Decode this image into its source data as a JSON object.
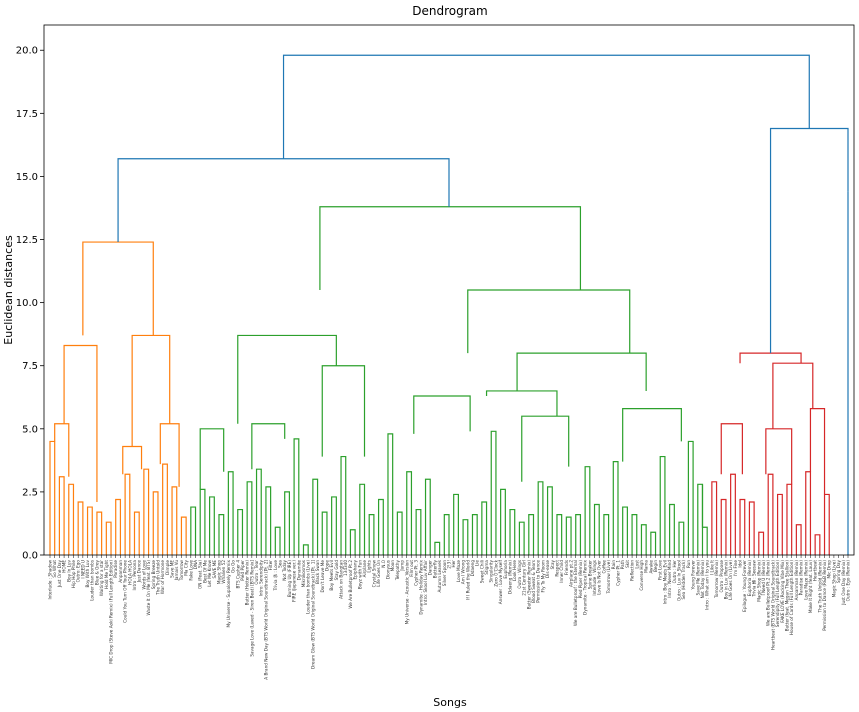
{
  "chart_data": {
    "type": "dendrogram",
    "title": "Dendrogram",
    "xlabel": "Songs",
    "ylabel": "Euclidean distances",
    "ylim": [
      0,
      21
    ],
    "yticks": [
      "0.0",
      "2.5",
      "5.0",
      "7.5",
      "10.0",
      "12.5",
      "15.0",
      "17.5",
      "20.0"
    ],
    "grid": false,
    "colors": {
      "orange": "#ff7f0e",
      "green": "#2ca02c",
      "red": "#d62728",
      "blue": "#1f77b4"
    },
    "cluster_leaf_counts": {
      "orange": 30,
      "green": 111,
      "red": 25,
      "blue": 1
    },
    "leaf_labels": [
      "Interlude : Shadow",
      "So What",
      "Just One Day",
      "HOME",
      "Boy In Luv",
      "Hip Hop Phile",
      "Outro: Ego",
      "I NEED U",
      "Boy With Luv",
      "Louder than bombs",
      "Blue & Grey",
      "Waiting for a star",
      "Hold Me Tight",
      "MIC Drop (Steve Aoki Remix) (Full Length Edition)",
      "Paradise",
      "Anpanman",
      "Could You Turn Off Your Phone",
      "HOLA HOLA",
      "Intro : Persona",
      "Just Dance",
      "Words of Love",
      "Waste It On Me (feat. BTS)",
      "Spring Breeze",
      "The Truth Untold",
      "War of Hormone",
      "Dimple",
      "Save ME",
      "Jamais Vu",
      "Tomorrow",
      "Ma City",
      "Fake Love",
      "DNA",
      "ON (Feat. Sia)",
      "Best Of Me",
      "Let Me Know",
      "SAVE ME",
      "Magic Shop",
      "Whalien 52",
      "My Universe - Supalonely Remix",
      "Go Go",
      "BTS Cypher 4",
      "Pied Piper",
      "Butter (Hotter Remix)",
      "Savage Love (Laxed - Siren Beat) [BTS Remix]",
      "Outro : Tear",
      "Intro: Serendipity",
      "A Brand New Day (BTS World Original Soundtrack) [Pt. 2]",
      "Filter",
      "Trivia 承 : Love",
      "Sea",
      "Not Today",
      "Burning Up (FIRE)",
      "FIRE (Japanese ver.)",
      "Dynamite",
      "Mikrokosmos",
      "Louder than bombs (Live)",
      "Dream Glow (BTS World Original Soundtrack) [Pt. 1]",
      "Black Swan",
      "Don't Leave Me",
      "Dope",
      "Boy Meets Evil",
      "Stay Gold",
      "Attack on Bangtan",
      "134340",
      "We Are Bulletproof Pt.2",
      "Epiphany",
      "Boyz with Fun",
      "Airplane",
      "Lights",
      "Crystal Snow",
      "Life Goes On",
      "N.O",
      "Dionysus",
      "Moon",
      "Telepathy",
      "Jump",
      "My Universe - Acoustic Version",
      "Film out",
      "Cypher Pt. 3",
      "Dynamite - Holiday Remix",
      "Intro: Skool Luv Affair",
      "Danger",
      "Butterfly",
      "Autumn Leaves",
      "Silver Spoon",
      "2!3!",
      "Her",
      "Love Maze",
      "Am I Wrong",
      "If I Ruled the World",
      "Ddaeng",
      "Lie",
      "Sweet Chili",
      "Stigma",
      "Singularity",
      "Zero O'Clock",
      "Answer : Love Myself",
      "Euphoria",
      "Ddaeng (Remix)",
      "Look Here",
      "Outro : Wings",
      "21st Century Girl",
      "Butter (Sweeter Remix)",
      "Blood Sweat & Tears",
      "Permission to Dance",
      "Fly To My Room",
      "Dis-ease",
      "Stay",
      "Respect",
      "Inner Child",
      "Friends",
      "Airplane pt.2",
      "We are Bulletproof : the Eternal",
      "Pied Piper (Remix)",
      "Dynamite - Tropical Remix",
      "Spine Breaker",
      "Interlude : Wings",
      "Love Is Not Over",
      "Coffee",
      "Tomorrow (Live)",
      "Rain",
      "Cypher Pt. 1",
      "Path",
      "Skit",
      "Reflection",
      "Lost",
      "Converse High",
      "Mama",
      "Awake",
      "Begin",
      "First Love",
      "Intro : Boy Meets Evil",
      "Intro : Never Mind",
      "Outro : Her",
      "Outro : Luv In Skool",
      "Sea (Hidden Track)",
      "Run",
      "Young Forever",
      "Save Me (Remix)",
      "Not Today (Remix)",
      "Intro : What am I to you",
      "I Like It",
      "Tomorrow (Remix)",
      "Outro : Propose",
      "Boy in Luv (Remix)",
      "Life Goes On (Live)",
      "I'm Fine",
      "Idol",
      "Epilogue : Young Forever",
      "Euphoria (Remix)",
      "Trivia 轉 : Seesaw",
      "Magic Shop (Remix)",
      "I Need U (Remix)",
      "We are Bulletproof Pt.2 (Remix)",
      "Heartbeat (BTS World Original Soundtrack)",
      "Serendipity (Full Length Edition)",
      "FAKE LOVE (Rocking Vibe Mix)",
      "Butter (feat. Megan Thee Stallion)",
      "House of Cards (Full Length Edition)",
      "Anpanman (Remix)",
      "Paradise (Remix)",
      "Love Maze (Remix)",
      "Make It Right (feat. Lauv)",
      "Heartbeat",
      "The Truth Untold (Remix)",
      "Permission to Dance (R&B Remix)",
      "Mic Drop",
      "Magic Shop (Live)",
      "Spring Day",
      "Just One Day (Remix)",
      "Outro : Ego (Remix)"
    ],
    "links": [
      {
        "c": "orange",
        "a": 0,
        "b": 1,
        "h": 4.5
      },
      {
        "c": "orange",
        "a": 2,
        "b": 3,
        "h": 3.1
      },
      {
        "c": "orange",
        "a": 4,
        "b": 5,
        "h": 2.8
      },
      {
        "c": "orange",
        "a": 6,
        "b": 7,
        "h": 2.1
      },
      {
        "c": "orange",
        "a": 8,
        "b": 9,
        "h": 1.9
      },
      {
        "c": "orange",
        "a": 10,
        "b": 11,
        "h": 1.7
      },
      {
        "c": "orange",
        "a": 12,
        "b": 13,
        "h": 1.3
      },
      {
        "c": "orange",
        "a": 14,
        "b": 15,
        "h": 2.2
      },
      {
        "c": "orange",
        "a": 16,
        "b": 17,
        "h": 3.2
      },
      {
        "c": "orange",
        "a": 18,
        "b": 19,
        "h": 1.7
      },
      {
        "c": "orange",
        "a": 20,
        "b": 21,
        "h": 3.4
      },
      {
        "c": "orange",
        "a": 22,
        "b": 23,
        "h": 2.5
      },
      {
        "c": "orange",
        "a": 24,
        "b": 25,
        "h": 3.6
      },
      {
        "c": "orange",
        "a": 26,
        "b": 27,
        "h": 2.7
      },
      {
        "c": "orange",
        "a": 28,
        "b": 29,
        "h": 1.5
      },
      {
        "c": "green",
        "a": 30,
        "b": 31,
        "h": 1.9
      },
      {
        "c": "green",
        "a": 32,
        "b": 33,
        "h": 2.6
      },
      {
        "c": "green",
        "a": 34,
        "b": 35,
        "h": 2.3
      },
      {
        "c": "green",
        "a": 36,
        "b": 37,
        "h": 1.6
      },
      {
        "c": "green",
        "a": 38,
        "b": 39,
        "h": 3.3
      },
      {
        "c": "green",
        "a": 40,
        "b": 41,
        "h": 1.8
      },
      {
        "c": "green",
        "a": 42,
        "b": 43,
        "h": 2.9
      },
      {
        "c": "green",
        "a": 44,
        "b": 45,
        "h": 3.4
      },
      {
        "c": "green",
        "a": 46,
        "b": 47,
        "h": 2.7
      },
      {
        "c": "green",
        "a": 48,
        "b": 49,
        "h": 1.1
      },
      {
        "c": "green",
        "a": 50,
        "b": 51,
        "h": 2.5
      },
      {
        "c": "green",
        "a": 52,
        "b": 53,
        "h": 4.6
      },
      {
        "c": "green",
        "a": 54,
        "b": 55,
        "h": 0.4
      },
      {
        "c": "green",
        "a": 56,
        "b": 57,
        "h": 3.0
      },
      {
        "c": "green",
        "a": 58,
        "b": 59,
        "h": 1.7
      },
      {
        "c": "green",
        "a": 60,
        "b": 61,
        "h": 2.3
      },
      {
        "c": "green",
        "a": 62,
        "b": 63,
        "h": 3.9
      },
      {
        "c": "green",
        "a": 64,
        "b": 65,
        "h": 1.0
      },
      {
        "c": "green",
        "a": 66,
        "b": 67,
        "h": 2.8
      },
      {
        "c": "green",
        "a": 68,
        "b": 69,
        "h": 1.6
      },
      {
        "c": "green",
        "a": 70,
        "b": 71,
        "h": 2.2
      },
      {
        "c": "green",
        "a": 72,
        "b": 73,
        "h": 4.8
      },
      {
        "c": "green",
        "a": 74,
        "b": 75,
        "h": 1.7
      },
      {
        "c": "green",
        "a": 76,
        "b": 77,
        "h": 3.3
      },
      {
        "c": "green",
        "a": 78,
        "b": 79,
        "h": 1.8
      },
      {
        "c": "green",
        "a": 80,
        "b": 81,
        "h": 3.0
      },
      {
        "c": "green",
        "a": 82,
        "b": 83,
        "h": 0.5
      },
      {
        "c": "green",
        "a": 84,
        "b": 85,
        "h": 1.6
      },
      {
        "c": "green",
        "a": 86,
        "b": 87,
        "h": 2.4
      },
      {
        "c": "green",
        "a": 88,
        "b": 89,
        "h": 1.4
      },
      {
        "c": "green",
        "a": 90,
        "b": 91,
        "h": 1.6
      },
      {
        "c": "green",
        "a": 92,
        "b": 93,
        "h": 2.1
      },
      {
        "c": "green",
        "a": 94,
        "b": 95,
        "h": 4.9
      },
      {
        "c": "green",
        "a": 96,
        "b": 97,
        "h": 2.6
      },
      {
        "c": "green",
        "a": 98,
        "b": 99,
        "h": 1.8
      },
      {
        "c": "green",
        "a": 100,
        "b": 101,
        "h": 1.3
      },
      {
        "c": "green",
        "a": 102,
        "b": 103,
        "h": 1.6
      },
      {
        "c": "green",
        "a": 104,
        "b": 105,
        "h": 2.9
      },
      {
        "c": "green",
        "a": 106,
        "b": 107,
        "h": 2.7
      },
      {
        "c": "green",
        "a": 108,
        "b": 109,
        "h": 1.6
      },
      {
        "c": "green",
        "a": 110,
        "b": 111,
        "h": 1.5
      },
      {
        "c": "green",
        "a": 112,
        "b": 113,
        "h": 1.6
      },
      {
        "c": "green",
        "a": 114,
        "b": 115,
        "h": 3.5
      },
      {
        "c": "green",
        "a": 116,
        "b": 117,
        "h": 2.0
      },
      {
        "c": "green",
        "a": 118,
        "b": 119,
        "h": 1.6
      },
      {
        "c": "green",
        "a": 120,
        "b": 121,
        "h": 3.7
      },
      {
        "c": "green",
        "a": 122,
        "b": 123,
        "h": 1.9
      },
      {
        "c": "green",
        "a": 124,
        "b": 125,
        "h": 1.6
      },
      {
        "c": "green",
        "a": 126,
        "b": 127,
        "h": 1.2
      },
      {
        "c": "green",
        "a": 128,
        "b": 129,
        "h": 0.9
      },
      {
        "c": "green",
        "a": 130,
        "b": 131,
        "h": 3.9
      },
      {
        "c": "green",
        "a": 132,
        "b": 133,
        "h": 2.0
      },
      {
        "c": "green",
        "a": 134,
        "b": 135,
        "h": 1.3
      },
      {
        "c": "green",
        "a": 136,
        "b": 137,
        "h": 4.5
      },
      {
        "c": "green",
        "a": 138,
        "b": 139,
        "h": 2.8
      },
      {
        "c": "green",
        "a": 139,
        "b": 140,
        "h": 1.1
      },
      {
        "c": "red",
        "a": 141,
        "b": 142,
        "h": 2.9
      },
      {
        "c": "red",
        "a": 143,
        "b": 144,
        "h": 2.2
      },
      {
        "c": "red",
        "a": 145,
        "b": 146,
        "h": 3.2
      },
      {
        "c": "red",
        "a": 147,
        "b": 148,
        "h": 2.2
      },
      {
        "c": "red",
        "a": 149,
        "b": 150,
        "h": 2.1
      },
      {
        "c": "red",
        "a": 151,
        "b": 152,
        "h": 0.9
      },
      {
        "c": "red",
        "a": 153,
        "b": 154,
        "h": 3.2
      },
      {
        "c": "red",
        "a": 155,
        "b": 156,
        "h": 2.4
      },
      {
        "c": "red",
        "a": 157,
        "b": 158,
        "h": 2.8
      },
      {
        "c": "red",
        "a": 159,
        "b": 160,
        "h": 1.2
      },
      {
        "c": "red",
        "a": 161,
        "b": 162,
        "h": 3.3
      },
      {
        "c": "red",
        "a": 163,
        "b": 164,
        "h": 0.8
      },
      {
        "c": "red",
        "a": 165,
        "b": 166,
        "h": 2.4
      }
    ],
    "merges": [
      {
        "c": "orange",
        "from": 0,
        "to": 5,
        "h": 5.2
      },
      {
        "c": "orange",
        "from": 0,
        "to": 13,
        "h": 8.3
      },
      {
        "c": "orange",
        "from": 14,
        "to": 21,
        "h": 4.3
      },
      {
        "c": "orange",
        "from": 22,
        "to": 29,
        "h": 5.2
      },
      {
        "c": "orange",
        "from": 14,
        "to": 29,
        "h": 8.7
      },
      {
        "c": "orange",
        "from": 0,
        "to": 29,
        "h": 12.4
      },
      {
        "c": "green",
        "from": 30,
        "to": 39,
        "h": 5.0
      },
      {
        "c": "green",
        "from": 40,
        "to": 53,
        "h": 5.2
      },
      {
        "c": "green",
        "from": 54,
        "to": 71,
        "h": 7.5
      },
      {
        "c": "green",
        "from": 30,
        "to": 71,
        "h": 8.7
      },
      {
        "c": "green",
        "from": 72,
        "to": 95,
        "h": 6.3
      },
      {
        "c": "green",
        "from": 96,
        "to": 115,
        "h": 5.5
      },
      {
        "c": "green",
        "from": 86,
        "to": 115,
        "h": 6.5
      },
      {
        "c": "green",
        "from": 116,
        "to": 140,
        "h": 5.8
      },
      {
        "c": "green",
        "from": 86,
        "to": 140,
        "h": 8.0
      },
      {
        "c": "green",
        "from": 72,
        "to": 140,
        "h": 10.5
      },
      {
        "c": "green",
        "from": 30,
        "to": 140,
        "h": 13.8
      },
      {
        "c": "red",
        "from": 141,
        "to": 149,
        "h": 5.2
      },
      {
        "c": "red",
        "from": 150,
        "to": 160,
        "h": 5.0
      },
      {
        "c": "red",
        "from": 161,
        "to": 166,
        "h": 5.8
      },
      {
        "c": "red",
        "from": 150,
        "to": 166,
        "h": 7.6
      },
      {
        "c": "red",
        "from": 141,
        "to": 166,
        "h": 8.0
      }
    ],
    "top_links": [
      {
        "c": "blue",
        "left_cluster": "orange",
        "right_cluster": "green",
        "h": 15.7
      },
      {
        "c": "blue",
        "left_cluster": "red",
        "right_cluster": "blue",
        "h": 16.9
      },
      {
        "c": "blue",
        "left_cluster": "orange+green",
        "right_cluster": "red+blue",
        "h": 19.8
      }
    ],
    "blue_singleton_height": 14.4
  }
}
